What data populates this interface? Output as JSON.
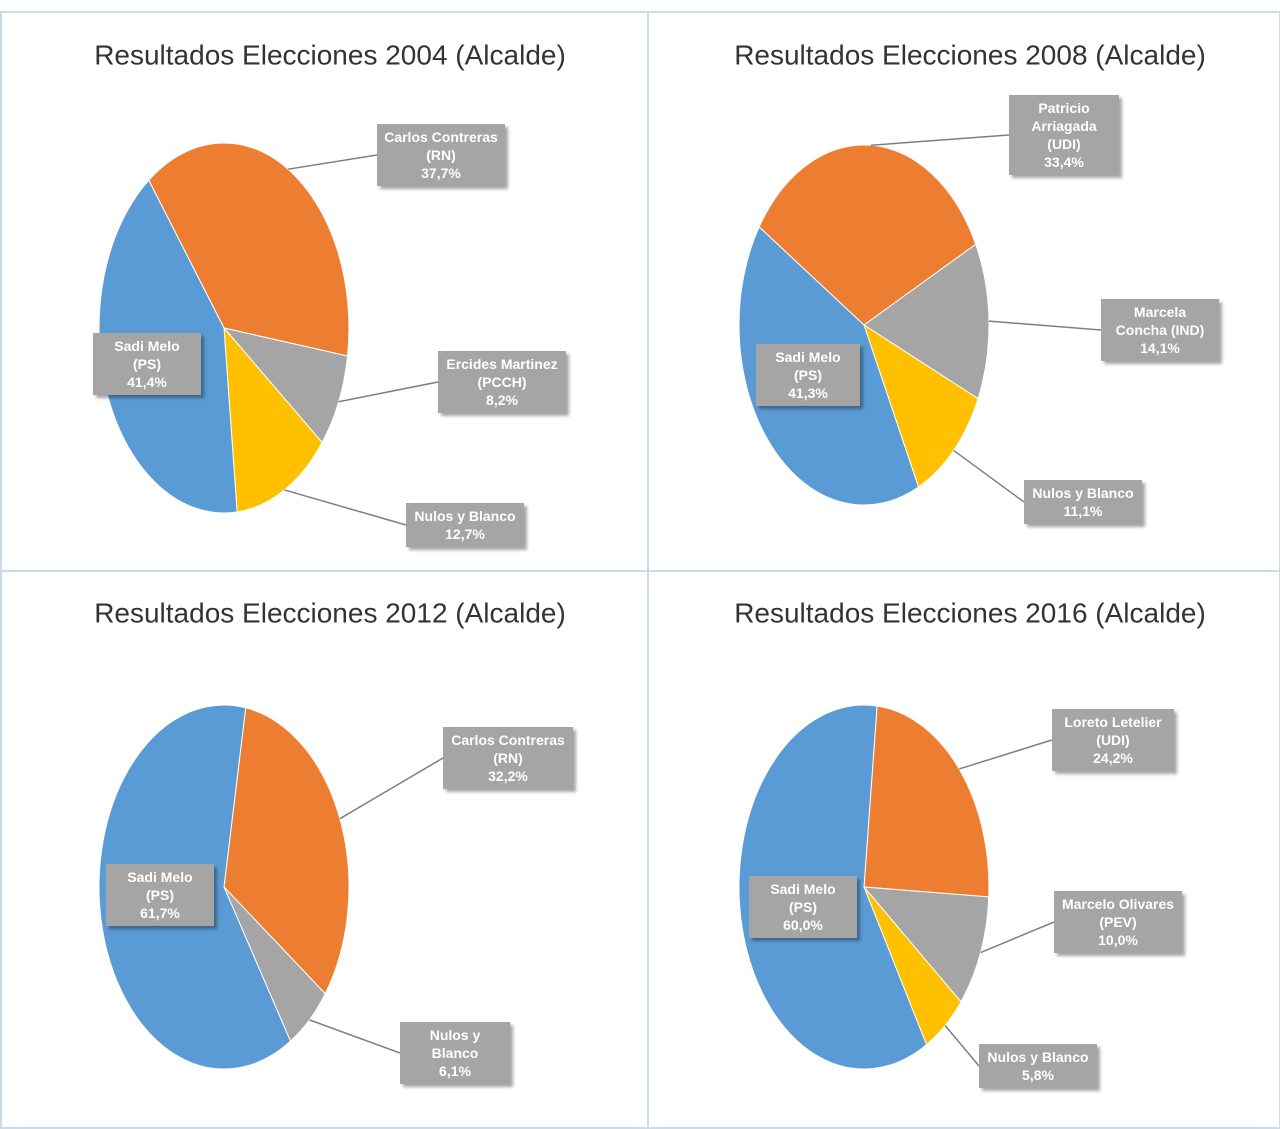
{
  "chart_data": [
    {
      "type": "pie",
      "title": "Resultados Elecciones 2004 (Alcalde)",
      "categories": [
        "Carlos Contreras (RN)",
        "Ercides Martinez (PCCH)",
        "Nulos y Blanco",
        "Sadi Melo (PS)"
      ],
      "values": [
        37.7,
        8.2,
        12.7,
        41.4
      ],
      "value_labels": [
        "37,7%",
        "8,2%",
        "12,7%",
        "41,4%"
      ],
      "colors": [
        "#ed7d31",
        "#a5a5a5",
        "#ffc000",
        "#5b9bd5"
      ]
    },
    {
      "type": "pie",
      "title": "Resultados Elecciones 2008 (Alcalde)",
      "categories": [
        "Patricio Arriagada (UDI)",
        "Marcela Concha (IND)",
        "Nulos y Blanco",
        "Sadi Melo (PS)"
      ],
      "values": [
        33.4,
        14.1,
        11.1,
        41.3
      ],
      "value_labels": [
        "33,4%",
        "14,1%",
        "11,1%",
        "41,3%"
      ],
      "colors": [
        "#ed7d31",
        "#a5a5a5",
        "#ffc000",
        "#5b9bd5"
      ]
    },
    {
      "type": "pie",
      "title": "Resultados Elecciones 2012 (Alcalde)",
      "categories": [
        "Carlos Contreras (RN)",
        "Nulos y Blanco",
        "Sadi Melo (PS)"
      ],
      "values": [
        32.2,
        6.1,
        61.7
      ],
      "value_labels": [
        "32,2%",
        "6,1%",
        "61,7%"
      ],
      "colors": [
        "#ed7d31",
        "#a5a5a5",
        "#5b9bd5"
      ]
    },
    {
      "type": "pie",
      "title": "Resultados Elecciones 2016 (Alcalde)",
      "categories": [
        "Loreto Letelier (UDI)",
        "Marcelo Olivares (PEV)",
        "Nulos y Blanco",
        "Sadi Melo (PS)"
      ],
      "values": [
        24.2,
        10.0,
        5.8,
        60.0
      ],
      "value_labels": [
        "24,2%",
        "10,0%",
        "5,8%",
        "60,0%"
      ],
      "colors": [
        "#ed7d31",
        "#a5a5a5",
        "#ffc000",
        "#5b9bd5"
      ]
    }
  ]
}
